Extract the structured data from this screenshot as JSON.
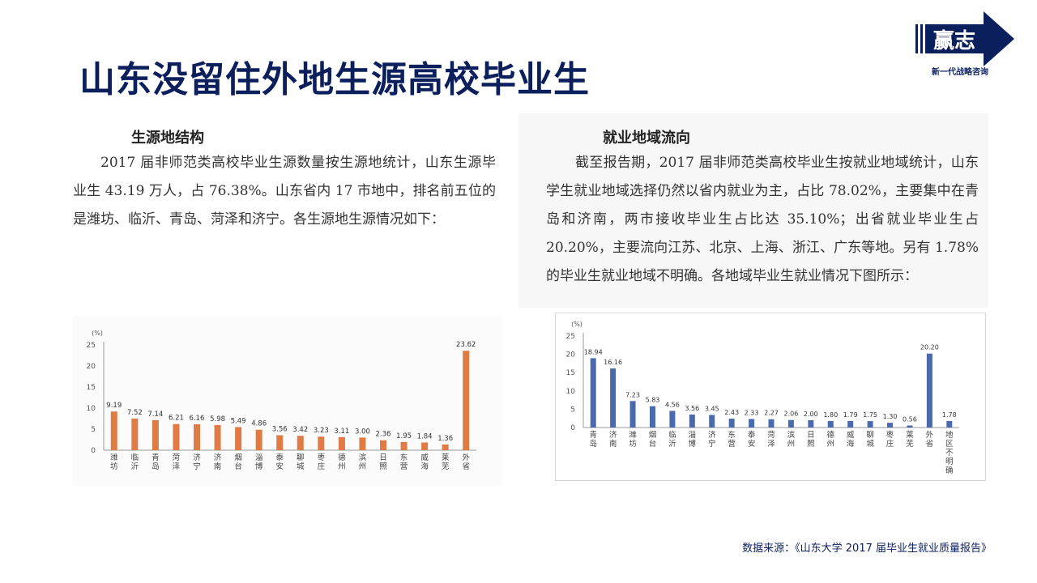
{
  "page_title": "山东没留住外地生源高校毕业生",
  "logo": {
    "main": "赢志",
    "sub": "新一代战略咨询"
  },
  "left": {
    "heading": "生源地结构",
    "paragraph": "2017 届非师范类高校毕业生源数量按生源地统计，山东生源毕业生 43.19 万人，占 76.38%。山东省内 17 市地中，排名前五位的是潍坊、临沂、青岛、菏泽和济宁。各生源地生源情况如下："
  },
  "right": {
    "heading": "就业地域流向",
    "paragraph": "截至报告期，2017 届非师范类高校毕业生按就业地域统计，山东学生就业地域选择仍然以省内就业为主，占比 78.02%，主要集中在青岛和济南，两市接收毕业生占比达 35.10%；出省就业毕业生占 20.20%，主要流向江苏、北京、上海、浙江、广东等地。另有 1.78%的毕业生就业地域不明确。各地域毕业生就业情况下图所示："
  },
  "source": "数据来源：《山东大学 2017 届毕业生就业质量报告》",
  "colors": {
    "left_bar": "#e07b45",
    "right_bar": "#4a6aae",
    "title": "#0b1f5c"
  },
  "chart_data": [
    {
      "type": "bar",
      "unit_label": "(%)",
      "ylim": [
        0,
        25
      ],
      "yticks": [
        0,
        5,
        10,
        15,
        20,
        25
      ],
      "categories": [
        "潍坊",
        "临沂",
        "青岛",
        "菏泽",
        "济宁",
        "济南",
        "烟台",
        "淄博",
        "泰安",
        "聊城",
        "枣庄",
        "德州",
        "滨州",
        "日照",
        "东营",
        "威海",
        "莱芜",
        "外省"
      ],
      "values": [
        9.19,
        7.52,
        7.14,
        6.21,
        6.16,
        5.98,
        5.49,
        4.86,
        3.56,
        3.42,
        3.23,
        3.11,
        3.0,
        2.36,
        1.95,
        1.84,
        1.36,
        23.62
      ],
      "value_labels": [
        "9.19",
        "7.52",
        "7.14",
        "6.21",
        "6.16",
        "5.98",
        "5.49",
        "4.86",
        "3.56",
        "3.42",
        "3.23",
        "3.11",
        "3.00",
        "2.36",
        "1.95",
        "1.84",
        "1.36",
        "23.62"
      ],
      "grid": false
    },
    {
      "type": "bar",
      "unit_label": "(%)",
      "ylim": [
        0,
        25
      ],
      "yticks": [
        0,
        5,
        10,
        15,
        20,
        25
      ],
      "categories": [
        "青岛",
        "济南",
        "潍坊",
        "烟台",
        "临沂",
        "淄博",
        "济宁",
        "东营",
        "泰安",
        "菏泽",
        "滨州",
        "日照",
        "德州",
        "威海",
        "聊城",
        "枣庄",
        "莱芜",
        "外省",
        "地区不明确"
      ],
      "values": [
        18.94,
        16.16,
        7.23,
        5.83,
        4.56,
        3.56,
        3.45,
        2.43,
        2.33,
        2.27,
        2.06,
        2.0,
        1.8,
        1.79,
        1.75,
        1.3,
        0.56,
        20.2,
        1.78
      ],
      "value_labels": [
        "18.94",
        "16.16",
        "7.23",
        "5.83",
        "4.56",
        "3.56",
        "3.45",
        "2.43",
        "2.33",
        "2.27",
        "2.06",
        "2.00",
        "1.80",
        "1.79",
        "1.75",
        "1.30",
        "0.56",
        "20.20",
        "1.78"
      ],
      "grid": false
    }
  ]
}
